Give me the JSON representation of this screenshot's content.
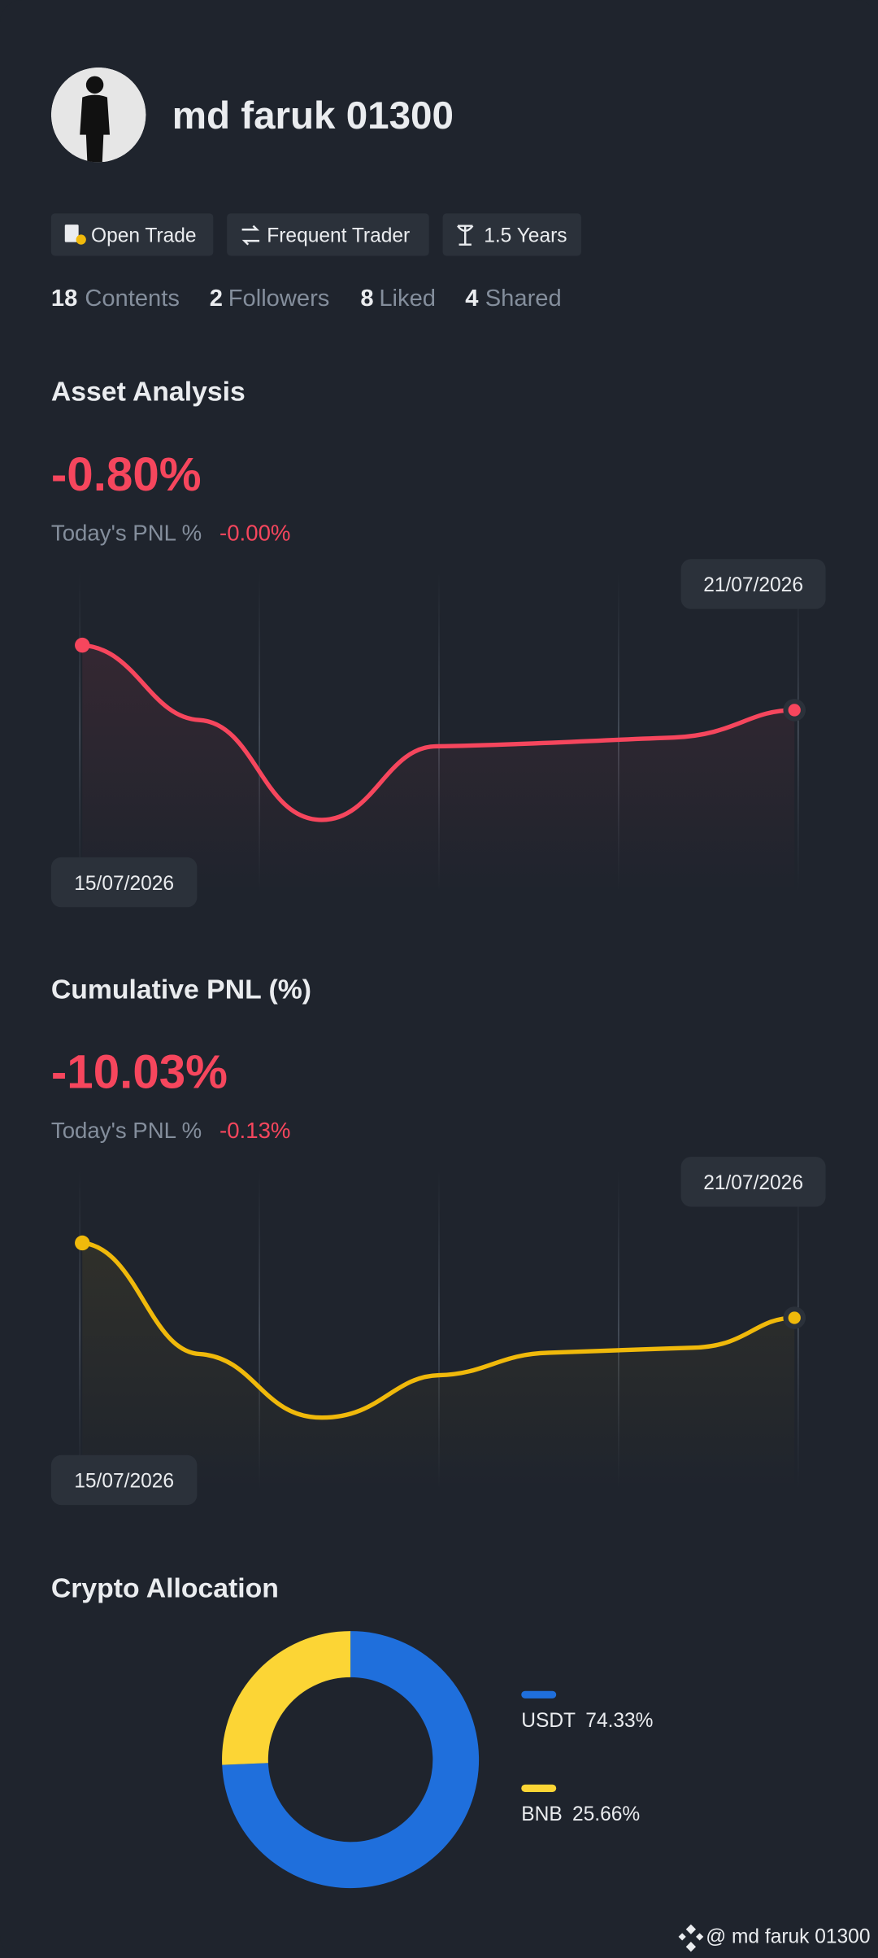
{
  "profile": {
    "name": "md faruk 01300"
  },
  "badges": [
    "Open Trade",
    "Frequent Trader",
    "1.5 Years"
  ],
  "stats": [
    {
      "value": "18",
      "label": "Contents"
    },
    {
      "value": "2",
      "label": "Followers"
    },
    {
      "value": "8",
      "label": "Liked"
    },
    {
      "value": "4",
      "label": "Shared"
    }
  ],
  "asset_analysis": {
    "title": "Asset Analysis",
    "value": "-0.80%",
    "today_label": "Today's PNL %",
    "today_value": "-0.00%",
    "start_date": "15/07/2026",
    "end_date": "21/07/2026"
  },
  "cumulative_pnl": {
    "title": "Cumulative PNL (%)",
    "value": "-10.03%",
    "today_label": "Today's PNL %",
    "today_value": "-0.13%",
    "start_date": "15/07/2026",
    "end_date": "21/07/2026"
  },
  "chart_data": {
    "type": "pie",
    "title": "Crypto Allocation",
    "categories": [
      "USDT",
      "BNB"
    ],
    "values": [
      74.33,
      25.66
    ],
    "value_labels": [
      "74.33%",
      "25.66%"
    ],
    "colors": [
      "#1f6fdc",
      "#fcd535"
    ]
  },
  "footer": "@ md faruk 01300"
}
